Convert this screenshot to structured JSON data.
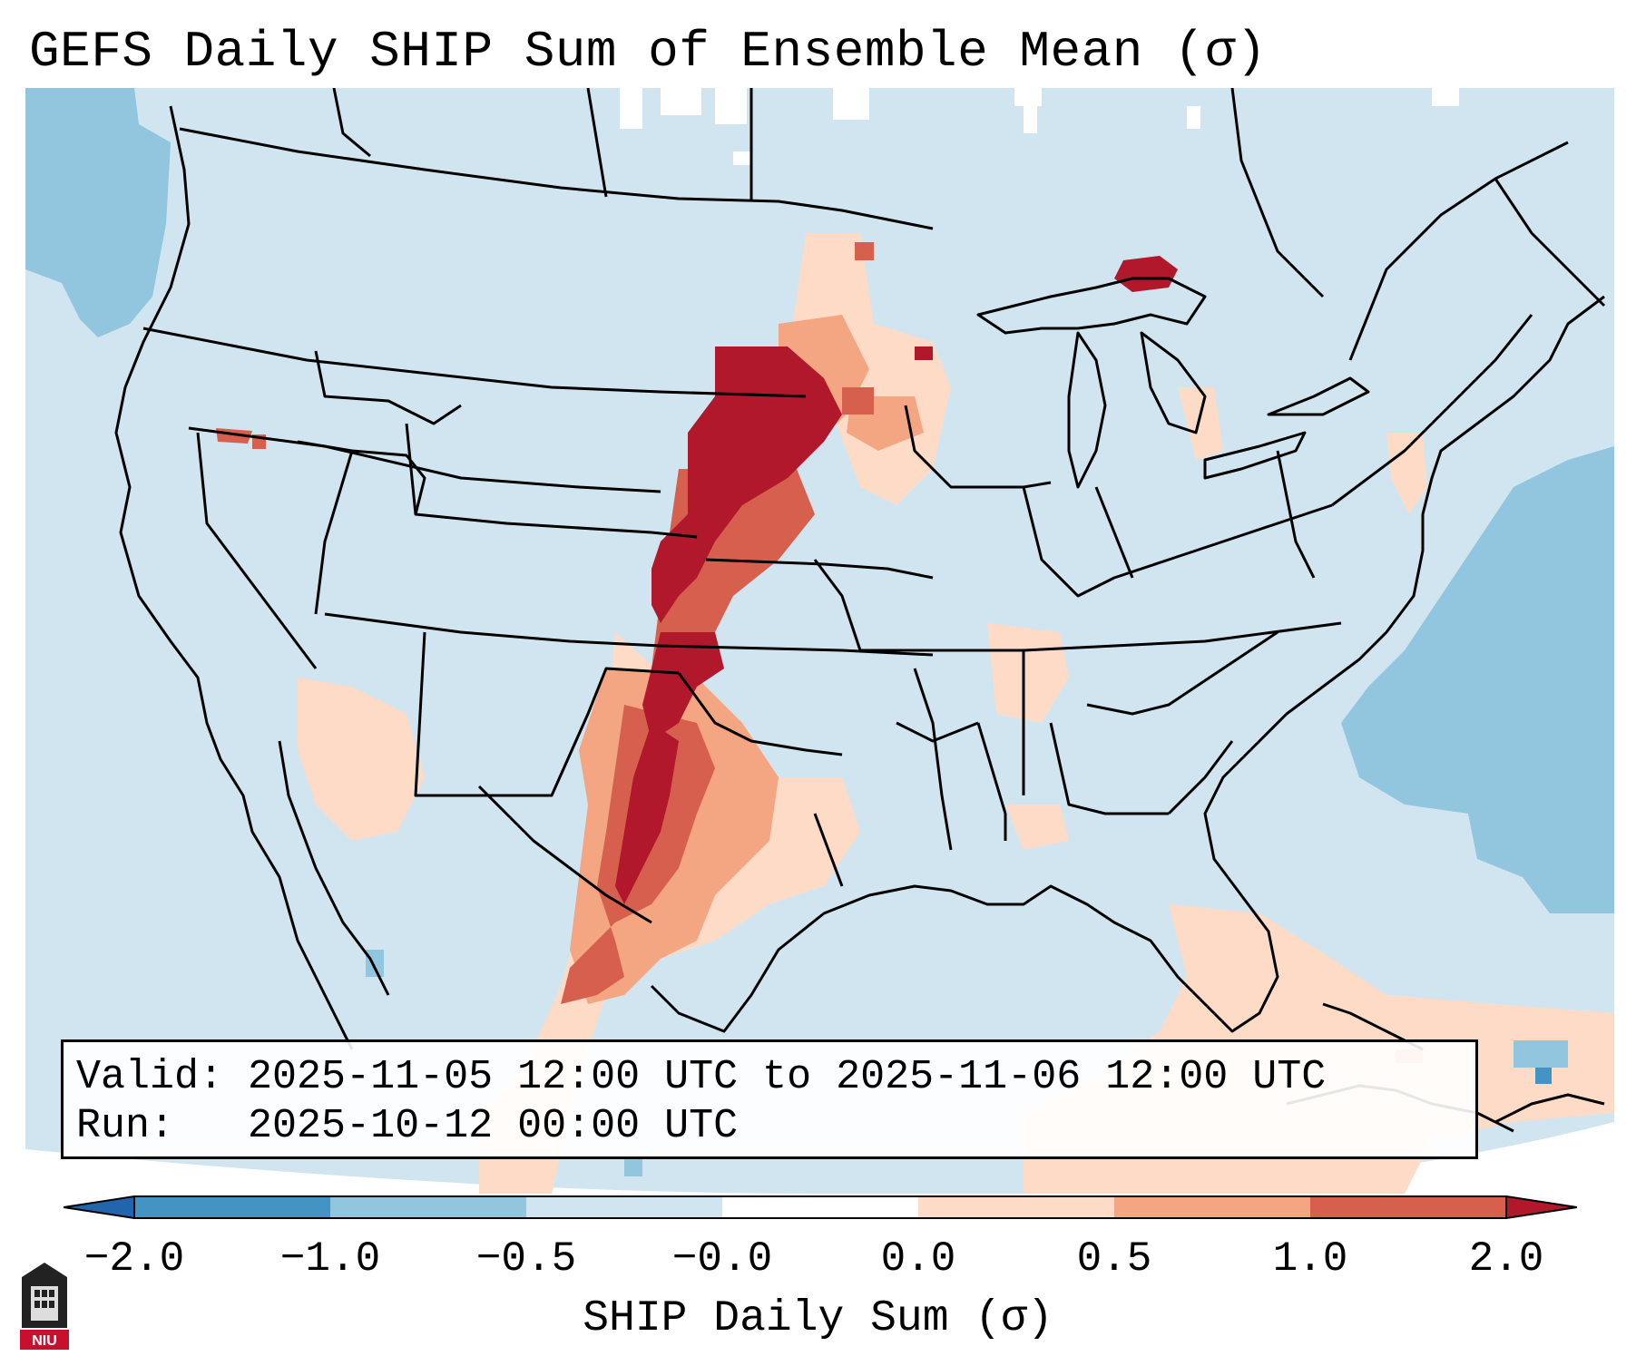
{
  "title": "GEFS Daily SHIP Sum of Ensemble Mean (σ)",
  "info_box": {
    "valid_label": "Valid:",
    "valid_value": "2025-11-05 12:00 UTC to 2025-11-06 12:00 UTC",
    "run_label": "Run:",
    "run_value": "2025-10-12 00:00 UTC"
  },
  "colorbar": {
    "label": "SHIP Daily Sum (σ)",
    "ticks": [
      "−2.0",
      "−1.0",
      "−0.5",
      "−0.0",
      "0.0",
      "0.5",
      "1.0",
      "2.0"
    ],
    "colors": [
      "#4393c3",
      "#92c5de",
      "#d1e5f0",
      "#fddbc7",
      "#f4a582",
      "#d6604d",
      "#b2182b"
    ],
    "under_color": "#2166ac",
    "over_color": "#b2182b"
  },
  "colors": {
    "background_field": "#d1e5f0",
    "ocean_negative": "#92c5de",
    "strong_negative": "#4393c3",
    "light_positive": "#fddbc7",
    "mid_positive": "#f4a582",
    "high_positive": "#d6604d",
    "max_positive": "#b2182b"
  },
  "logo": {
    "text": "NIU"
  }
}
